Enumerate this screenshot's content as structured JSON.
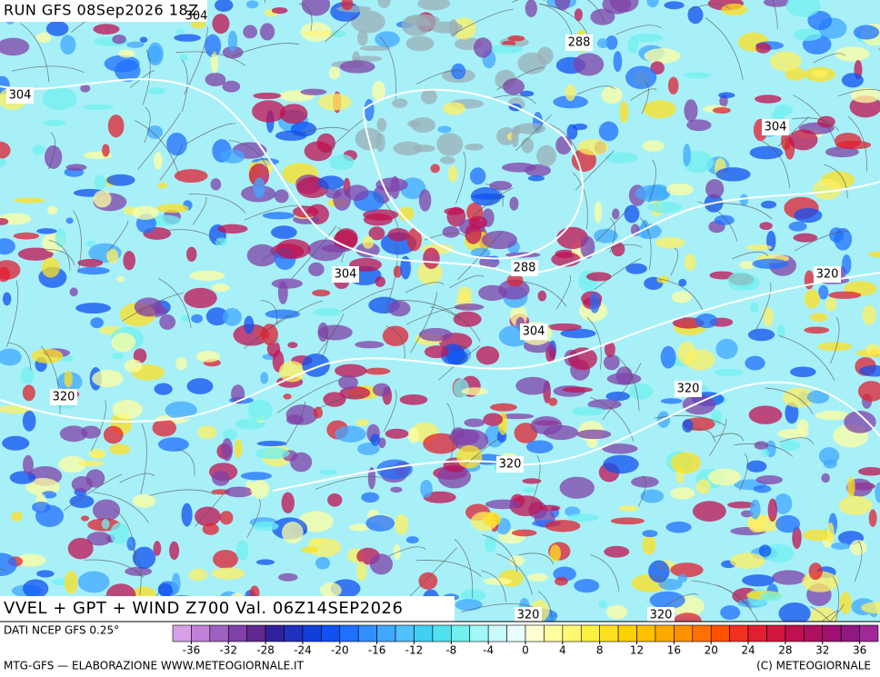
{
  "header": {
    "run": "RUN GFS 08Sep2026 18Z",
    "product": "VVEL + GPT + WIND Z700 Val. 06Z14SEP2026"
  },
  "contour_labels": [
    "304",
    "288",
    "304",
    "304",
    "304",
    "288",
    "304",
    "320",
    "320",
    "320",
    "320",
    "320",
    "320"
  ],
  "legend": {
    "source": "DATI NCEP GFS 0.25°",
    "lim": [
      -38,
      38
    ],
    "ticks": [
      -36,
      -32,
      -28,
      -24,
      -20,
      -16,
      -12,
      -8,
      -4,
      0,
      4,
      8,
      12,
      16,
      20,
      24,
      28,
      32,
      36
    ],
    "colors": [
      "#d8a0e8",
      "#c080d8",
      "#a060c0",
      "#8040a8",
      "#602890",
      "#3020a0",
      "#2030c0",
      "#1040d8",
      "#1050f0",
      "#2070ff",
      "#3090ff",
      "#40a8ff",
      "#50c0ff",
      "#40d0f0",
      "#50e0f0",
      "#70f0f0",
      "#a0f8f8",
      "#c8fcfc",
      "#e8ffff",
      "#ffffd0",
      "#ffffa0",
      "#fff870",
      "#fff040",
      "#ffe020",
      "#ffd000",
      "#ffc000",
      "#ffa800",
      "#ff9000",
      "#ff7000",
      "#ff5000",
      "#f03020",
      "#e02030",
      "#d01840",
      "#c01050",
      "#b01060",
      "#a01070",
      "#901880",
      "#a02898"
    ]
  },
  "footer": {
    "credit": "MTG-GFS — ELABORAZIONE WWW.METEOGIORNALE.IT",
    "copyright": "(C) METEOGIORNALE"
  }
}
